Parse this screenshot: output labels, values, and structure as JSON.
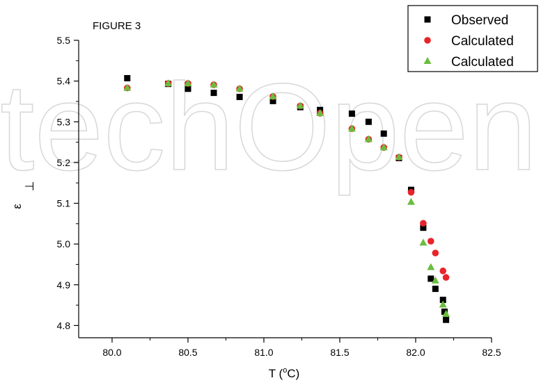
{
  "chart_data": {
    "type": "scatter",
    "figure_label": "FIGURE 3",
    "xlabel": "T (°C)",
    "xlabel_parts": {
      "prefix": "T (",
      "superscript": "o",
      "suffix": "C)"
    },
    "ylabel": "ε",
    "ylabel_mark": "⊥",
    "xlim": [
      79.78,
      82.5
    ],
    "ylim": [
      4.77,
      5.5
    ],
    "xticks": [
      80.0,
      80.5,
      81.0,
      81.5,
      82.0,
      82.5
    ],
    "xtick_labels": [
      "80.0",
      "80.5",
      "81.0",
      "81.5",
      "82.0",
      "82.5"
    ],
    "yticks": [
      4.8,
      4.9,
      5.0,
      5.1,
      5.2,
      5.3,
      5.4,
      5.5
    ],
    "ytick_labels": [
      "4.8",
      "4.9",
      "5.0",
      "5.1",
      "5.2",
      "5.3",
      "5.4",
      "5.5"
    ],
    "grid": false,
    "legend_position": "top-right",
    "watermark_text": "techOpen",
    "series": [
      {
        "name": "Observed",
        "marker": "square",
        "color": "#000000",
        "x": [
          80.1,
          80.37,
          80.5,
          80.67,
          80.84,
          81.06,
          81.24,
          81.37,
          81.58,
          81.69,
          81.79,
          81.89,
          81.97,
          82.05,
          82.1,
          82.13,
          82.18,
          82.19,
          82.2
        ],
        "y": [
          5.407,
          5.393,
          5.381,
          5.371,
          5.361,
          5.351,
          5.336,
          5.329,
          5.32,
          5.3,
          5.271,
          5.211,
          5.133,
          5.04,
          4.915,
          4.89,
          4.863,
          4.834,
          4.814
        ]
      },
      {
        "name": "Calculated",
        "marker": "circle",
        "color": "#e8232a",
        "x": [
          80.1,
          80.37,
          80.5,
          80.67,
          80.84,
          81.06,
          81.24,
          81.37,
          81.58,
          81.69,
          81.79,
          81.89,
          81.97,
          82.05,
          82.1,
          82.13,
          82.18,
          82.2
        ],
        "y": [
          5.383,
          5.394,
          5.394,
          5.391,
          5.381,
          5.362,
          5.339,
          5.321,
          5.283,
          5.257,
          5.237,
          5.213,
          5.127,
          5.051,
          5.007,
          4.978,
          4.934,
          4.918
        ]
      },
      {
        "name": "Calculated",
        "marker": "triangle",
        "color": "#6cbd3f",
        "x": [
          80.1,
          80.37,
          80.5,
          80.67,
          80.84,
          81.06,
          81.24,
          81.37,
          81.58,
          81.69,
          81.79,
          81.89,
          81.97,
          82.05,
          82.1,
          82.13,
          82.18,
          82.2
        ],
        "y": [
          5.383,
          5.394,
          5.394,
          5.391,
          5.381,
          5.362,
          5.339,
          5.321,
          5.283,
          5.257,
          5.237,
          5.213,
          5.103,
          5.003,
          4.943,
          4.91,
          4.851,
          4.828
        ]
      }
    ]
  }
}
